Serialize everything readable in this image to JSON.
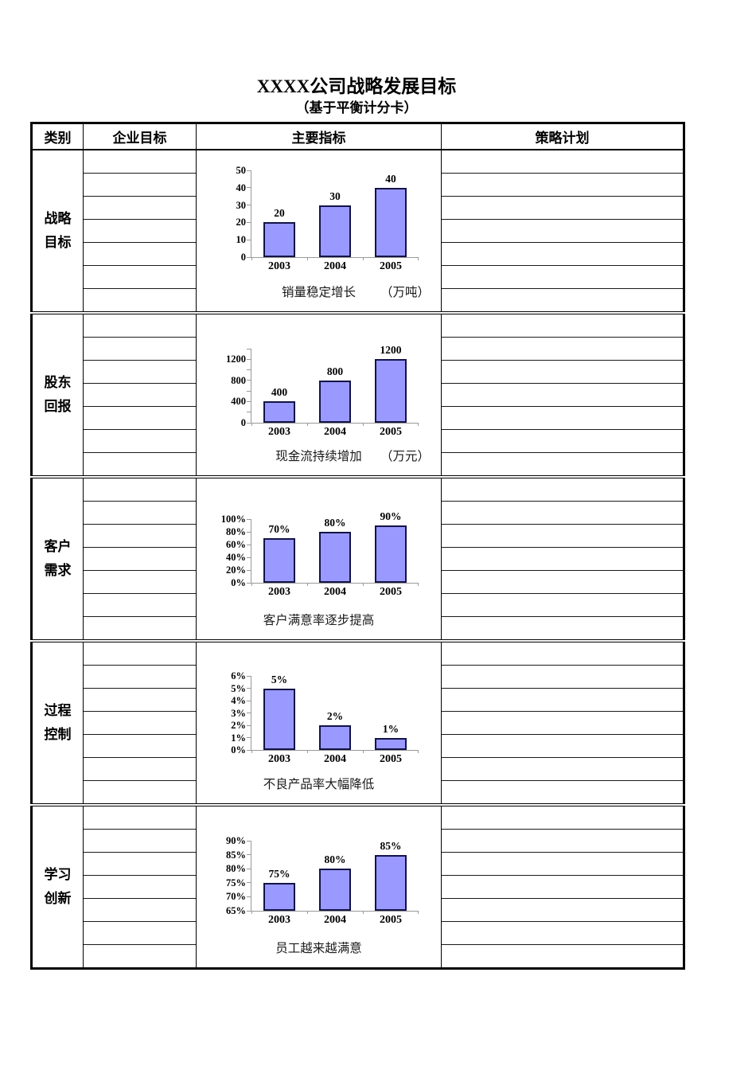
{
  "page": {
    "title": "XXXX公司战略发展目标",
    "subtitle": "（基于平衡计分卡）"
  },
  "table": {
    "columns": [
      "类别",
      "企业目标",
      "主要指标",
      "策略计划"
    ]
  },
  "sections": [
    {
      "category": "战略目标",
      "category_lines": [
        "战略",
        "目标"
      ],
      "empty_goal_rows": 7,
      "empty_plan_rows": 7
    },
    {
      "category": "股东回报",
      "category_lines": [
        "股东",
        "回报"
      ],
      "empty_goal_rows": 7,
      "empty_plan_rows": 7
    },
    {
      "category": "客户需求",
      "category_lines": [
        "客户",
        "需求"
      ],
      "empty_goal_rows": 7,
      "empty_plan_rows": 7
    },
    {
      "category": "过程控制",
      "category_lines": [
        "过程",
        "控制"
      ],
      "empty_goal_rows": 7,
      "empty_plan_rows": 7
    },
    {
      "category": "学习创新",
      "category_lines": [
        "学习",
        "创新"
      ],
      "empty_goal_rows": 7,
      "empty_plan_rows": 7
    }
  ],
  "colors": {
    "bar_fill": "#9999FF",
    "bar_border": "#131347",
    "axis": "#999999"
  },
  "chart_data": [
    {
      "type": "bar",
      "title": "销量稳定增长",
      "unit": "（万吨）",
      "categories": [
        "2003",
        "2004",
        "2005"
      ],
      "values": [
        20,
        30,
        40
      ],
      "bar_labels": [
        "20",
        "30",
        "40"
      ],
      "ylim": [
        0,
        50
      ],
      "yticks": [
        {
          "v": 0,
          "label": "0"
        },
        {
          "v": 10,
          "label": "10"
        },
        {
          "v": 20,
          "label": "20"
        },
        {
          "v": 30,
          "label": "30"
        },
        {
          "v": 40,
          "label": "40"
        },
        {
          "v": 50,
          "label": "50"
        }
      ],
      "grid": false,
      "legend": false
    },
    {
      "type": "bar",
      "title": "现金流持续增加",
      "unit": "（万元）",
      "categories": [
        "2003",
        "2004",
        "2005"
      ],
      "values": [
        400,
        800,
        1200
      ],
      "bar_labels": [
        "400",
        "800",
        "1200"
      ],
      "ylim": [
        0,
        1400
      ],
      "yticks": [
        {
          "v": 0,
          "label": "0"
        },
        {
          "v": 200,
          "label": ""
        },
        {
          "v": 400,
          "label": "400"
        },
        {
          "v": 600,
          "label": ""
        },
        {
          "v": 800,
          "label": "800"
        },
        {
          "v": 1000,
          "label": ""
        },
        {
          "v": 1200,
          "label": "1200"
        },
        {
          "v": 1400,
          "label": ""
        }
      ],
      "grid": false,
      "legend": false
    },
    {
      "type": "bar",
      "title": "客户满意率逐步提高",
      "unit": "",
      "categories": [
        "2003",
        "2004",
        "2005"
      ],
      "values": [
        70,
        80,
        90
      ],
      "bar_labels": [
        "70%",
        "80%",
        "90%"
      ],
      "ylim": [
        0,
        100
      ],
      "yticks": [
        {
          "v": 0,
          "label": "0%"
        },
        {
          "v": 20,
          "label": "20%"
        },
        {
          "v": 40,
          "label": "40%"
        },
        {
          "v": 60,
          "label": "60%"
        },
        {
          "v": 80,
          "label": "80%"
        },
        {
          "v": 100,
          "label": "100%"
        }
      ],
      "grid": false,
      "legend": false
    },
    {
      "type": "bar",
      "title": "不良产品率大幅降低",
      "unit": "",
      "categories": [
        "2003",
        "2004",
        "2005"
      ],
      "values": [
        5,
        2,
        1
      ],
      "bar_labels": [
        "5%",
        "2%",
        "1%"
      ],
      "ylim": [
        0,
        6
      ],
      "yticks": [
        {
          "v": 0,
          "label": "0%"
        },
        {
          "v": 1,
          "label": "1%"
        },
        {
          "v": 2,
          "label": "2%"
        },
        {
          "v": 3,
          "label": "3%"
        },
        {
          "v": 4,
          "label": "4%"
        },
        {
          "v": 5,
          "label": "5%"
        },
        {
          "v": 6,
          "label": "6%"
        }
      ],
      "grid": false,
      "legend": false
    },
    {
      "type": "bar",
      "title": "员工越来越满意",
      "unit": "",
      "categories": [
        "2003",
        "2004",
        "2005"
      ],
      "values": [
        75,
        80,
        85
      ],
      "bar_labels": [
        "75%",
        "80%",
        "85%"
      ],
      "ylim": [
        65,
        90
      ],
      "yticks": [
        {
          "v": 65,
          "label": "65%"
        },
        {
          "v": 70,
          "label": "70%"
        },
        {
          "v": 75,
          "label": "75%"
        },
        {
          "v": 80,
          "label": "80%"
        },
        {
          "v": 85,
          "label": "85%"
        },
        {
          "v": 90,
          "label": "90%"
        }
      ],
      "grid": false,
      "legend": false
    }
  ]
}
